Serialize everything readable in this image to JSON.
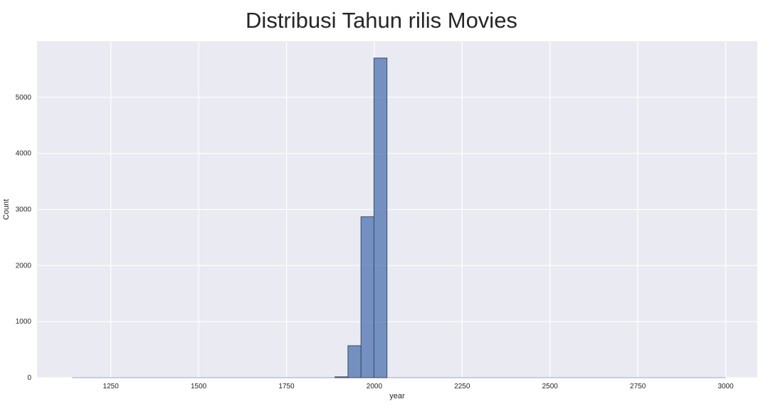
{
  "chart_data": {
    "type": "bar",
    "title": "Distribusi Tahun rilis Movies",
    "xlabel": "year",
    "ylabel": "Count",
    "xlim": [
      1040,
      3090
    ],
    "ylim": [
      0,
      6000
    ],
    "xticks": [
      1250,
      1500,
      1750,
      2000,
      2250,
      2500,
      2750,
      3000
    ],
    "yticks": [
      0,
      1000,
      2000,
      3000,
      4000,
      5000
    ],
    "grid": true,
    "bins": [
      {
        "x0": 1888,
        "x1": 1925,
        "count": 15
      },
      {
        "x0": 1925,
        "x1": 1962,
        "count": 570
      },
      {
        "x0": 1962,
        "x1": 1999,
        "count": 2870
      },
      {
        "x0": 1999,
        "x1": 2036,
        "count": 5700
      }
    ],
    "baseline_range": [
      1140,
      3000
    ],
    "bar_color": "#4c72b0",
    "background_color": "#eaeaf2",
    "grid_color": "#ffffff"
  }
}
